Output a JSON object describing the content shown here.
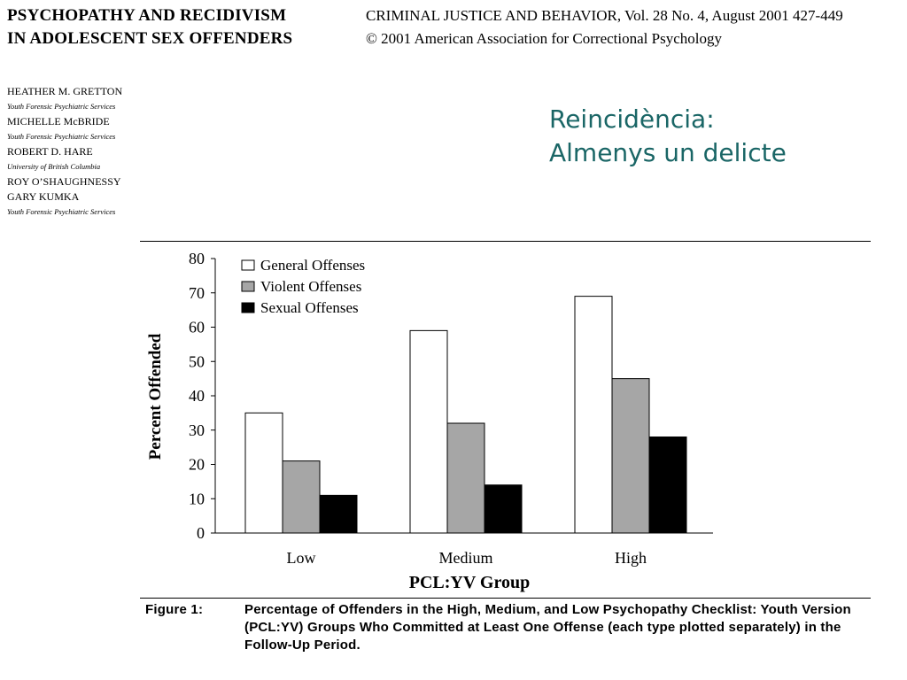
{
  "paper": {
    "title_line1": "PSYCHOPATHY AND RECIDIVISM",
    "title_line2": "IN ADOLESCENT SEX OFFENDERS",
    "journal_line1": "CRIMINAL JUSTICE AND BEHAVIOR, Vol. 28 No. 4, August 2001  427-449",
    "journal_line2": "© 2001 American Association for Correctional Psychology"
  },
  "authors": [
    {
      "name": "HEATHER M. GRETTON",
      "affiliation": "Youth Forensic Psychiatric Services"
    },
    {
      "name": "MICHELLE McBRIDE",
      "affiliation": "Youth Forensic Psychiatric Services"
    },
    {
      "name": "ROBERT D. HARE",
      "affiliation": "University of British Columbia"
    },
    {
      "name": "ROY O’SHAUGHNESSY",
      "affiliation": ""
    },
    {
      "name": "GARY KUMKA",
      "affiliation": "Youth Forensic Psychiatric Services"
    }
  ],
  "slide_title": {
    "line1": "Reincidència:",
    "line2": "Almenys un delicte"
  },
  "figure": {
    "label": "Figure 1:",
    "caption": "Percentage of Offenders in the High, Medium, and Low Psychopathy Checklist: Youth Version (PCL:YV) Groups Who Committed at Least One Offense (each type plotted separately) in the Follow-Up Period."
  },
  "chart_data": {
    "type": "bar",
    "categories": [
      "Low",
      "Medium",
      "High"
    ],
    "series": [
      {
        "name": "General Offenses",
        "values": [
          35,
          59,
          69
        ],
        "color": "#ffffff"
      },
      {
        "name": "Violent Offenses",
        "values": [
          21,
          32,
          45
        ],
        "color": "#a6a6a6"
      },
      {
        "name": "Sexual Offenses",
        "values": [
          11,
          14,
          28
        ],
        "color": "#000000"
      }
    ],
    "title": "",
    "xlabel": "PCL:YV Group",
    "ylabel": "Percent Offended",
    "ylim": [
      0,
      80
    ],
    "yticks": [
      0,
      10,
      20,
      30,
      40,
      50,
      60,
      70,
      80
    ],
    "grid": false,
    "legend": "top-left"
  }
}
